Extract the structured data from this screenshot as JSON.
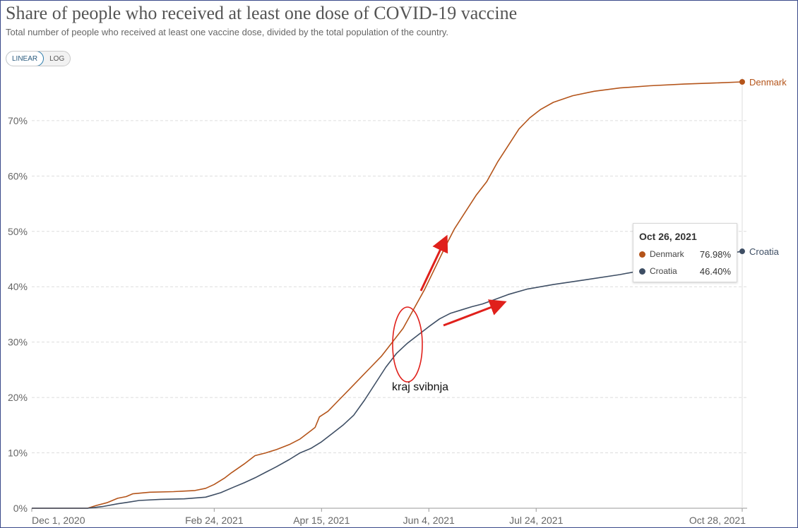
{
  "header": {
    "title": "Share of people who received at least one dose of COVID-19 vaccine",
    "subtitle": "Total number of people who received at least one vaccine dose, divided by the total population of the country."
  },
  "toggle": {
    "linear_label": "LINEAR",
    "log_label": "LOG",
    "selected": "LINEAR"
  },
  "tooltip": {
    "date": "Oct 26, 2021",
    "rows": [
      {
        "name": "Denmark",
        "value": "76.98%"
      },
      {
        "name": "Croatia",
        "value": "46.40%"
      }
    ]
  },
  "annotation": {
    "text": "kraj svibnja"
  },
  "chart_data": {
    "type": "line",
    "title": "Share of people who received at least one dose of COVID-19 vaccine",
    "xlabel": "",
    "ylabel": "",
    "ylim": [
      0,
      77
    ],
    "y_ticks": [
      0,
      10,
      20,
      30,
      40,
      50,
      60,
      70
    ],
    "y_tick_labels": [
      "0%",
      "10%",
      "20%",
      "30%",
      "40%",
      "50%",
      "60%",
      "70%"
    ],
    "x_range": [
      "2020-12-01",
      "2021-10-28"
    ],
    "x_ticks": [
      "2020-12-01",
      "2021-02-24",
      "2021-04-15",
      "2021-06-04",
      "2021-07-24",
      "2021-10-28"
    ],
    "x_tick_labels": [
      "Dec 1, 2020",
      "Feb 24, 2021",
      "Apr 15, 2021",
      "Jun 4, 2021",
      "Jul 24, 2021",
      "Oct 28, 2021"
    ],
    "grid": "horizontal dashed",
    "legend": "line-end labels",
    "series": [
      {
        "name": "Denmark",
        "color": "#b4541a",
        "end_label": "Denmark",
        "points": [
          [
            "2020-12-01",
            0
          ],
          [
            "2020-12-27",
            0
          ],
          [
            "2020-12-31",
            0.5
          ],
          [
            "2021-01-05",
            1.0
          ],
          [
            "2021-01-10",
            1.8
          ],
          [
            "2021-01-14",
            2.1
          ],
          [
            "2021-01-17",
            2.6
          ],
          [
            "2021-01-25",
            2.9
          ],
          [
            "2021-02-05",
            3.0
          ],
          [
            "2021-02-15",
            3.2
          ],
          [
            "2021-02-20",
            3.6
          ],
          [
            "2021-02-24",
            4.3
          ],
          [
            "2021-03-01",
            5.5
          ],
          [
            "2021-03-04",
            6.4
          ],
          [
            "2021-03-10",
            8.0
          ],
          [
            "2021-03-15",
            9.5
          ],
          [
            "2021-03-20",
            10.0
          ],
          [
            "2021-03-25",
            10.6
          ],
          [
            "2021-03-31",
            11.5
          ],
          [
            "2021-04-05",
            12.5
          ],
          [
            "2021-04-10",
            14.0
          ],
          [
            "2021-04-12",
            14.6
          ],
          [
            "2021-04-14",
            16.5
          ],
          [
            "2021-04-18",
            17.5
          ],
          [
            "2021-04-23",
            19.5
          ],
          [
            "2021-04-28",
            21.5
          ],
          [
            "2021-05-03",
            23.5
          ],
          [
            "2021-05-08",
            25.5
          ],
          [
            "2021-05-13",
            27.5
          ],
          [
            "2021-05-18",
            30.0
          ],
          [
            "2021-05-23",
            32.5
          ],
          [
            "2021-05-28",
            36.0
          ],
          [
            "2021-06-02",
            39.5
          ],
          [
            "2021-06-07",
            43.5
          ],
          [
            "2021-06-12",
            47.5
          ],
          [
            "2021-06-16",
            50.5
          ],
          [
            "2021-06-21",
            53.5
          ],
          [
            "2021-06-26",
            56.5
          ],
          [
            "2021-07-01",
            59.0
          ],
          [
            "2021-07-06",
            62.5
          ],
          [
            "2021-07-11",
            65.5
          ],
          [
            "2021-07-16",
            68.5
          ],
          [
            "2021-07-21",
            70.5
          ],
          [
            "2021-07-26",
            72.0
          ],
          [
            "2021-08-01",
            73.3
          ],
          [
            "2021-08-10",
            74.5
          ],
          [
            "2021-08-20",
            75.3
          ],
          [
            "2021-09-01",
            75.9
          ],
          [
            "2021-09-15",
            76.3
          ],
          [
            "2021-10-01",
            76.6
          ],
          [
            "2021-10-15",
            76.8
          ],
          [
            "2021-10-28",
            77.0
          ]
        ]
      },
      {
        "name": "Croatia",
        "color": "#3e4e64",
        "end_label": "Croatia",
        "points": [
          [
            "2020-12-01",
            0
          ],
          [
            "2020-12-27",
            0
          ],
          [
            "2021-01-03",
            0.3
          ],
          [
            "2021-01-10",
            0.8
          ],
          [
            "2021-01-15",
            1.1
          ],
          [
            "2021-01-20",
            1.4
          ],
          [
            "2021-01-30",
            1.6
          ],
          [
            "2021-02-10",
            1.7
          ],
          [
            "2021-02-20",
            2.0
          ],
          [
            "2021-02-27",
            2.8
          ],
          [
            "2021-03-05",
            3.8
          ],
          [
            "2021-03-10",
            4.6
          ],
          [
            "2021-03-15",
            5.5
          ],
          [
            "2021-03-20",
            6.5
          ],
          [
            "2021-03-25",
            7.5
          ],
          [
            "2021-03-31",
            8.8
          ],
          [
            "2021-04-05",
            10.0
          ],
          [
            "2021-04-10",
            10.8
          ],
          [
            "2021-04-15",
            12.0
          ],
          [
            "2021-04-20",
            13.5
          ],
          [
            "2021-04-25",
            15.0
          ],
          [
            "2021-04-30",
            16.8
          ],
          [
            "2021-05-05",
            19.5
          ],
          [
            "2021-05-10",
            22.5
          ],
          [
            "2021-05-15",
            25.5
          ],
          [
            "2021-05-20",
            28.0
          ],
          [
            "2021-05-25",
            29.8
          ],
          [
            "2021-05-30",
            31.3
          ],
          [
            "2021-06-04",
            32.8
          ],
          [
            "2021-06-09",
            34.2
          ],
          [
            "2021-06-14",
            35.2
          ],
          [
            "2021-06-19",
            35.8
          ],
          [
            "2021-06-24",
            36.4
          ],
          [
            "2021-06-29",
            36.9
          ],
          [
            "2021-07-04",
            37.6
          ],
          [
            "2021-07-11",
            38.6
          ],
          [
            "2021-07-20",
            39.6
          ],
          [
            "2021-08-01",
            40.4
          ],
          [
            "2021-08-15",
            41.2
          ],
          [
            "2021-09-01",
            42.2
          ],
          [
            "2021-09-15",
            43.2
          ],
          [
            "2021-10-01",
            44.6
          ],
          [
            "2021-10-15",
            45.6
          ],
          [
            "2021-10-28",
            46.4
          ]
        ]
      }
    ]
  }
}
